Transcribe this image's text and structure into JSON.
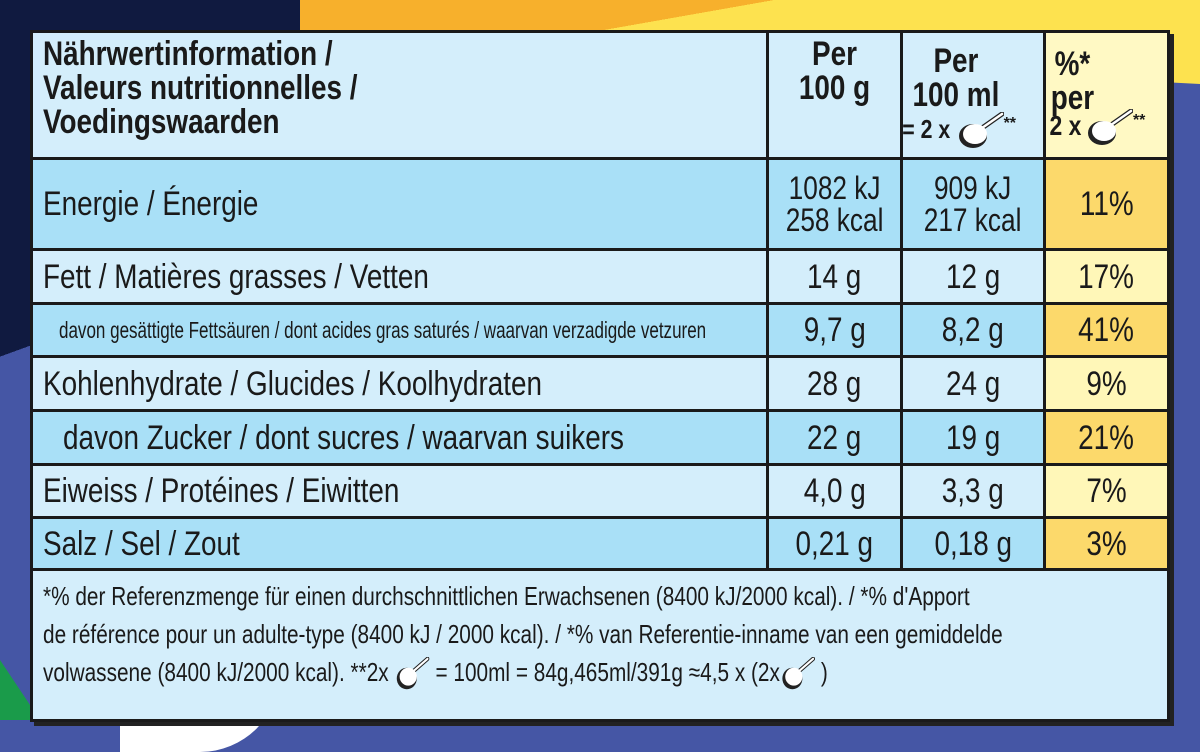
{
  "header": {
    "label_lines": [
      "Nährwertinformation /",
      "Valeurs nutritionnelles /",
      "Voedingswaarden"
    ],
    "col1": [
      "Per",
      "100 g"
    ],
    "col2": [
      "Per",
      "100 ml",
      "= 2 x",
      "**"
    ],
    "col3": [
      "%*",
      "per",
      "2 x",
      "**"
    ],
    "spoon_icon": "scoop-icon"
  },
  "rows": [
    {
      "label": "Energie / Énergie",
      "per100g": [
        "1082 kJ",
        "258 kcal"
      ],
      "per100ml": [
        "909 kJ",
        "217 kcal"
      ],
      "pct": "11%"
    },
    {
      "label": "Fett / Matières grasses / Vetten",
      "per100g": "14 g",
      "per100ml": "12 g",
      "pct": "17%"
    },
    {
      "label": "davon gesättigte Fettsäuren / dont acides gras saturés / waarvan verzadigde vetzuren",
      "per100g": "9,7 g",
      "per100ml": "8,2 g",
      "pct": "41%"
    },
    {
      "label": "Kohlenhydrate / Glucides / Koolhydraten",
      "per100g": "28 g",
      "per100ml": "24 g",
      "pct": "9%"
    },
    {
      "label": "davon Zucker / dont sucres / waarvan suikers",
      "per100g": "22 g",
      "per100ml": "19 g",
      "pct": "21%"
    },
    {
      "label": "Eiweiss / Protéines / Eiwitten",
      "per100g": "4,0 g",
      "per100ml": "3,3 g",
      "pct": "7%"
    },
    {
      "label": "Salz / Sel / Zout",
      "per100g": "0,21 g",
      "per100ml": "0,18 g",
      "pct": "3%"
    }
  ],
  "footer": {
    "line1": "*% der Referenzmenge für einen durchschnittlichen Erwachsenen (8400 kJ/2000 kcal). / *% d'Apport",
    "line2": "de référence pour un adulte-type (8400 kJ / 2000 kcal). / *% van Referentie-inname van een gemiddelde",
    "line3a": "volwassene (8400 kJ/2000 kcal).  **2x",
    "line3b": "= 100ml = 84g,465ml/391g ≈4,5 x (2x",
    "line3c": ")"
  },
  "colors": {
    "row_dark": "#a9e0f7",
    "row_light": "#d4eefb",
    "pct_dark": "#fcd96b",
    "pct_light": "#fff7b8",
    "border": "#1a1a1a"
  }
}
